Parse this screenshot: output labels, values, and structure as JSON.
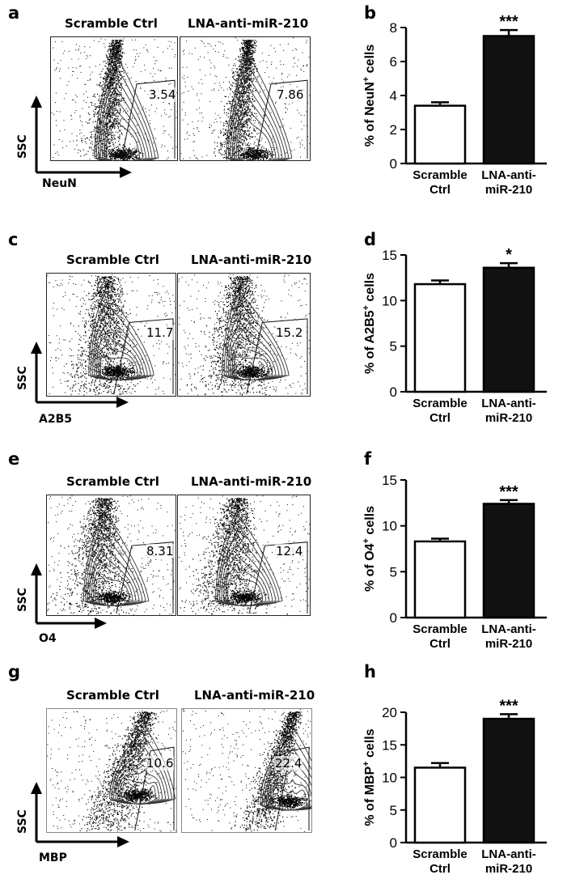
{
  "flow_conditions": [
    "Scramble Ctrl",
    "LNA-anti-miR-210"
  ],
  "flow_panels": [
    {
      "letter": "a",
      "y_axis": "SSC",
      "x_axis": "NeuN",
      "gate_values": [
        "3.54",
        "7.86"
      ]
    },
    {
      "letter": "c",
      "y_axis": "SSC",
      "x_axis": "A2B5",
      "gate_values": [
        "11.7",
        "15.2"
      ]
    },
    {
      "letter": "e",
      "y_axis": "SSC",
      "x_axis": "O4",
      "gate_values": [
        "8.31",
        "12.4"
      ]
    },
    {
      "letter": "g",
      "y_axis": "SSC",
      "x_axis": "MBP",
      "gate_values": [
        "10.6",
        "22.4"
      ]
    }
  ],
  "chart_data": [
    {
      "letter": "b",
      "type": "bar",
      "categories": [
        "Scramble\nCtrl",
        "LNA-anti-\nmiR-210"
      ],
      "values": [
        3.4,
        7.5
      ],
      "errors": [
        0.2,
        0.35
      ],
      "ylim": [
        0,
        8
      ],
      "yticks": [
        0,
        2,
        4,
        6,
        8
      ],
      "ylabel_pre": "% of NeuN",
      "ylabel_sup": "+",
      "ylabel_post": " cells",
      "significance": "***",
      "bar_colors": [
        "#ffffff",
        "#111111"
      ]
    },
    {
      "letter": "d",
      "type": "bar",
      "categories": [
        "Scramble\nCtrl",
        "LNA-anti-\nmiR-210"
      ],
      "values": [
        11.8,
        13.6
      ],
      "errors": [
        0.4,
        0.5
      ],
      "ylim": [
        0,
        15
      ],
      "yticks": [
        0,
        5,
        10,
        15
      ],
      "ylabel_pre": "% of A2B5",
      "ylabel_sup": "+",
      "ylabel_post": " cells",
      "significance": "*",
      "bar_colors": [
        "#ffffff",
        "#111111"
      ]
    },
    {
      "letter": "f",
      "type": "bar",
      "categories": [
        "Scramble\nCtrl",
        "LNA-anti-\nmiR-210"
      ],
      "values": [
        8.3,
        12.4
      ],
      "errors": [
        0.3,
        0.4
      ],
      "ylim": [
        0,
        15
      ],
      "yticks": [
        0,
        5,
        10,
        15
      ],
      "ylabel_pre": "% of O4",
      "ylabel_sup": "+",
      "ylabel_post": " cells",
      "significance": "***",
      "bar_colors": [
        "#ffffff",
        "#111111"
      ]
    },
    {
      "letter": "h",
      "type": "bar",
      "categories": [
        "Scramble\nCtrl",
        "LNA-anti-\nmiR-210"
      ],
      "values": [
        11.5,
        19.0
      ],
      "errors": [
        0.7,
        0.7
      ],
      "ylim": [
        0,
        20
      ],
      "yticks": [
        0,
        5,
        10,
        15,
        20
      ],
      "ylabel_pre": "% of MBP",
      "ylabel_sup": "+",
      "ylabel_post": " cells",
      "significance": "***",
      "bar_colors": [
        "#ffffff",
        "#111111"
      ]
    }
  ]
}
